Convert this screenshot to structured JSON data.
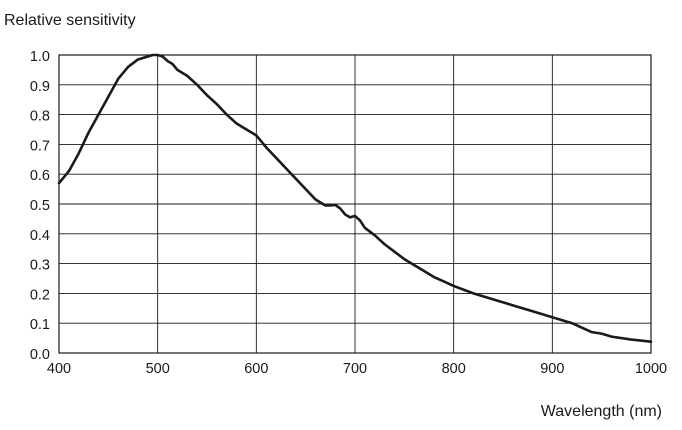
{
  "chart_data": {
    "type": "line",
    "ylabel": "Relative sensitivity",
    "xlabel": "Wavelength (nm)",
    "xlim": [
      400,
      1000
    ],
    "ylim": [
      0.0,
      1.0
    ],
    "xticks": [
      "400",
      "500",
      "600",
      "700",
      "800",
      "900",
      "1000"
    ],
    "yticks": [
      "0.0",
      "0.1",
      "0.2",
      "0.3",
      "0.4",
      "0.5",
      "0.6",
      "0.7",
      "0.8",
      "0.9",
      "1.0"
    ],
    "grid": true,
    "series": [
      {
        "x": [
          400,
          410,
          420,
          430,
          440,
          450,
          460,
          470,
          480,
          490,
          495,
          500,
          505,
          510,
          515,
          520,
          530,
          540,
          550,
          560,
          570,
          580,
          590,
          600,
          610,
          620,
          630,
          640,
          650,
          660,
          670,
          675,
          680,
          685,
          690,
          695,
          700,
          705,
          710,
          720,
          730,
          740,
          750,
          760,
          770,
          780,
          790,
          800,
          820,
          840,
          860,
          880,
          900,
          920,
          940,
          950,
          960,
          980,
          1000
        ],
        "y": [
          0.57,
          0.61,
          0.67,
          0.74,
          0.8,
          0.86,
          0.92,
          0.96,
          0.985,
          0.995,
          1.0,
          1.0,
          0.995,
          0.98,
          0.97,
          0.95,
          0.93,
          0.9,
          0.865,
          0.835,
          0.8,
          0.77,
          0.75,
          0.73,
          0.69,
          0.655,
          0.62,
          0.585,
          0.55,
          0.515,
          0.495,
          0.495,
          0.497,
          0.485,
          0.465,
          0.455,
          0.46,
          0.445,
          0.42,
          0.395,
          0.365,
          0.34,
          0.315,
          0.295,
          0.275,
          0.255,
          0.24,
          0.225,
          0.2,
          0.18,
          0.16,
          0.14,
          0.12,
          0.1,
          0.07,
          0.065,
          0.055,
          0.045,
          0.038
        ],
        "color": "#1a1a1a"
      }
    ]
  }
}
